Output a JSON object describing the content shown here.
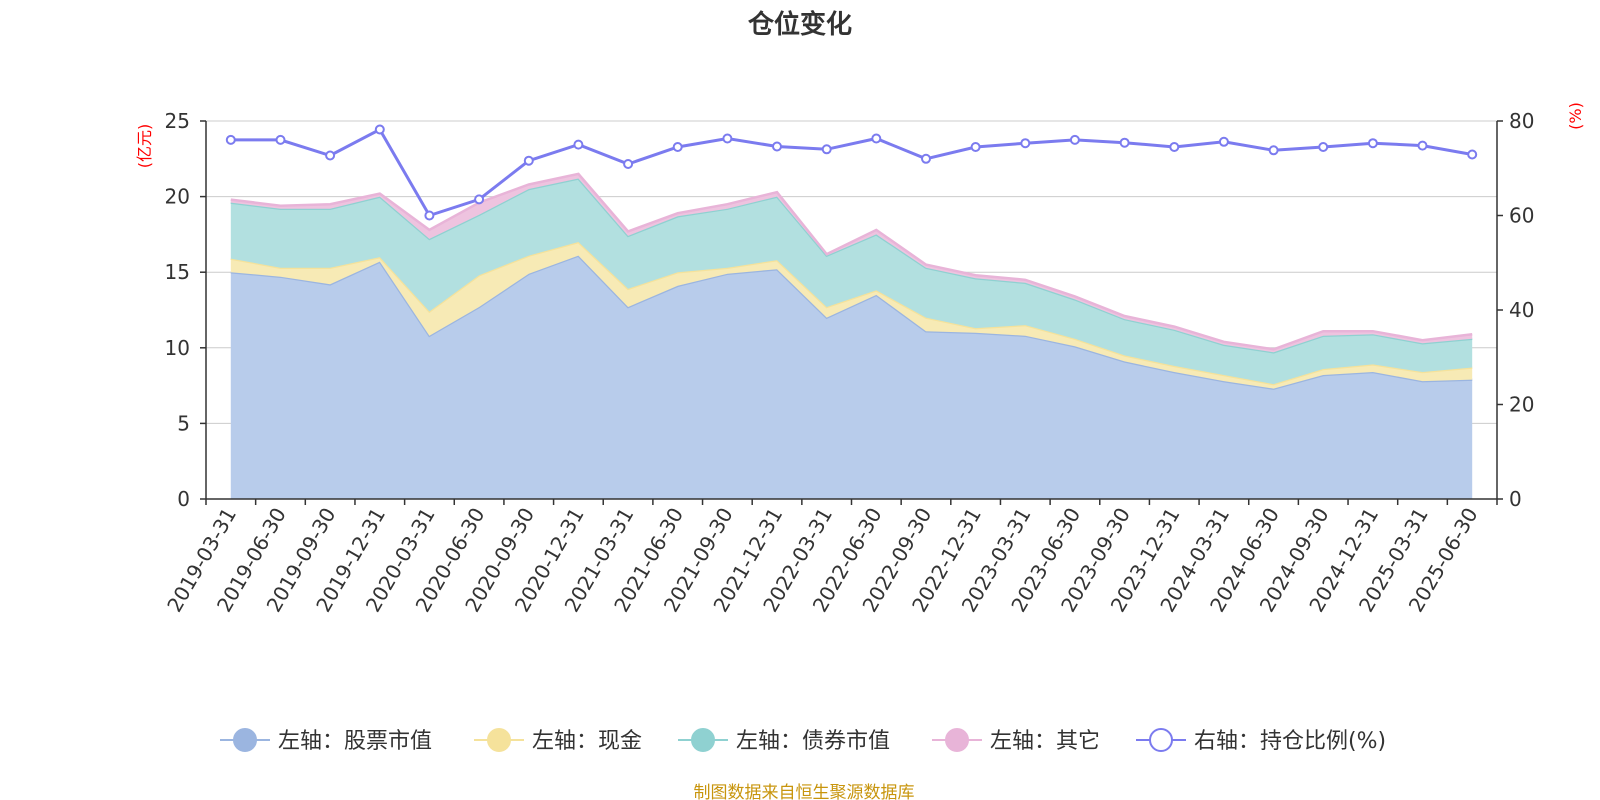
{
  "chart_data": {
    "type": "area",
    "title": "仓位变化",
    "left_unit": "(亿元)",
    "right_unit": "(%)",
    "left_ylim": [
      0,
      25
    ],
    "left_ticks": [
      "0",
      "5",
      "10",
      "15",
      "20",
      "25"
    ],
    "right_ylim": [
      0,
      80
    ],
    "right_ticks": [
      "0",
      "20",
      "40",
      "60",
      "80"
    ],
    "grid": true,
    "legend_position": "bottom",
    "categories": [
      "2019-03-31",
      "2019-06-30",
      "2019-09-30",
      "2019-12-31",
      "2020-03-31",
      "2020-06-30",
      "2020-09-30",
      "2020-12-31",
      "2021-03-31",
      "2021-06-30",
      "2021-09-30",
      "2021-12-31",
      "2022-03-31",
      "2022-06-30",
      "2022-09-30",
      "2022-12-31",
      "2023-03-31",
      "2023-06-30",
      "2023-09-30",
      "2023-12-31",
      "2024-03-31",
      "2024-06-30",
      "2024-09-30",
      "2024-12-31",
      "2025-03-31",
      "2025-06-30"
    ],
    "stacked_series": [
      {
        "name": "左轴：股票市值",
        "color": "#9bb5e0",
        "fill": "#b8cceb",
        "values": [
          15.0,
          14.7,
          14.2,
          15.7,
          10.8,
          12.7,
          14.9,
          16.1,
          12.7,
          14.1,
          14.9,
          15.2,
          12.0,
          13.5,
          11.1,
          11.0,
          10.8,
          10.1,
          9.1,
          8.4,
          7.8,
          7.3,
          8.2,
          8.4,
          7.8,
          7.9
        ]
      },
      {
        "name": "左轴：现金",
        "color": "#f5e29b",
        "fill": "#f7eab5",
        "values": [
          0.9,
          0.6,
          1.1,
          0.3,
          1.6,
          2.1,
          1.2,
          0.9,
          1.2,
          0.9,
          0.4,
          0.6,
          0.7,
          0.3,
          0.9,
          0.3,
          0.7,
          0.5,
          0.4,
          0.4,
          0.4,
          0.3,
          0.4,
          0.5,
          0.6,
          0.8
        ]
      },
      {
        "name": "左轴：债券市值",
        "color": "#8fd1d1",
        "fill": "#b2e0e0",
        "values": [
          3.7,
          3.9,
          3.9,
          4.0,
          4.8,
          4.0,
          4.4,
          4.2,
          3.5,
          3.7,
          3.9,
          4.2,
          3.4,
          3.7,
          3.3,
          3.3,
          2.8,
          2.6,
          2.4,
          2.4,
          2.0,
          2.1,
          2.2,
          2.0,
          1.9,
          1.9
        ]
      },
      {
        "name": "左轴：其它",
        "color": "#e8b4d8",
        "fill": "#eec3df",
        "values": [
          0.2,
          0.2,
          0.3,
          0.2,
          0.6,
          0.8,
          0.3,
          0.3,
          0.3,
          0.2,
          0.3,
          0.3,
          0.1,
          0.3,
          0.2,
          0.2,
          0.2,
          0.2,
          0.2,
          0.2,
          0.2,
          0.2,
          0.3,
          0.2,
          0.2,
          0.3
        ]
      }
    ],
    "line_series": {
      "name": "右轴：持仓比例(%)",
      "color": "#7b7bef",
      "values": [
        76.0,
        76.0,
        72.7,
        78.2,
        60.0,
        63.4,
        71.6,
        75.0,
        70.9,
        74.5,
        76.3,
        74.6,
        74.0,
        76.3,
        72.0,
        74.5,
        75.3,
        76.0,
        75.4,
        74.5,
        75.6,
        73.8,
        74.5,
        75.3,
        74.8,
        72.9
      ]
    },
    "source": "制图数据来自恒生聚源数据库"
  }
}
